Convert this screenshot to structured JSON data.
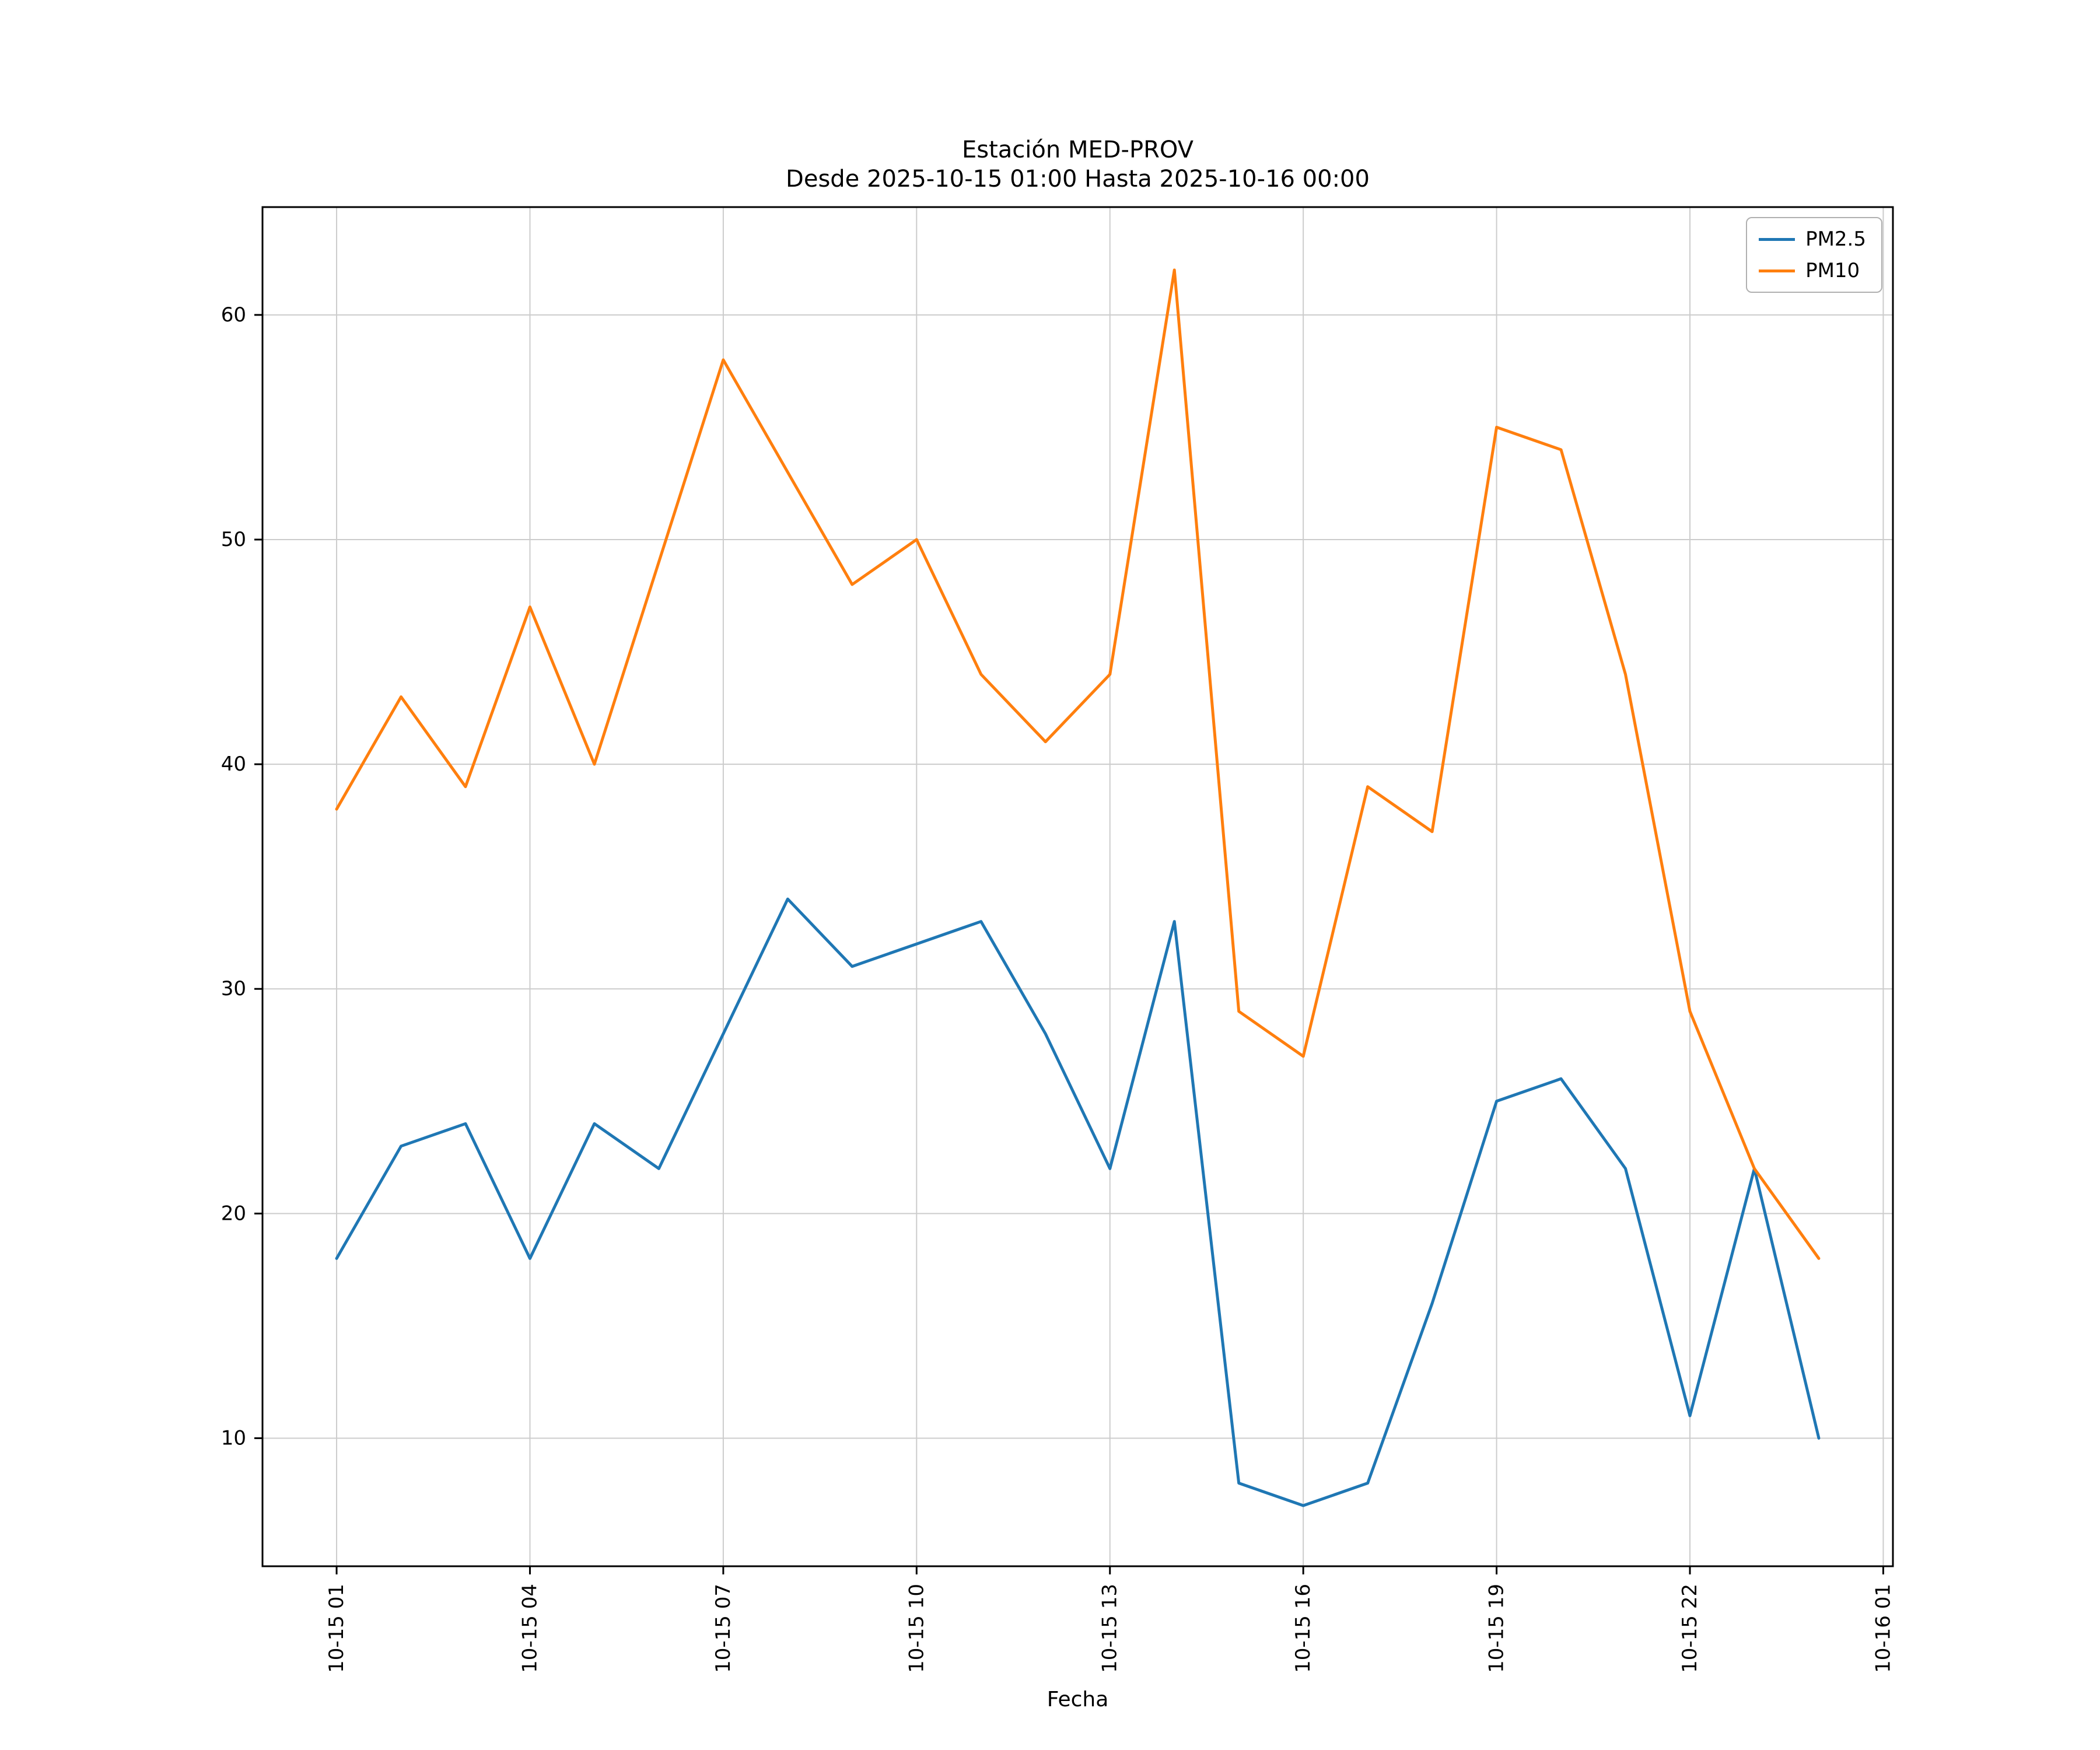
{
  "title": {
    "line1": "Estación MED-PROV",
    "line2": "Desde 2025-10-15 01:00 Hasta 2025-10-16 00:00"
  },
  "xlabel": "Fecha",
  "chart_data": {
    "type": "line",
    "title": "Estación MED-PROV",
    "subtitle": "Desde 2025-10-15 01:00 Hasta 2025-10-16 00:00",
    "xlabel": "Fecha",
    "ylabel": "",
    "grid": true,
    "legend_position": "upper right",
    "xlim": [
      -0.15,
      25.15
    ],
    "ylim": [
      4.3,
      64.8
    ],
    "x": [
      1,
      2,
      3,
      4,
      5,
      6,
      7,
      8,
      9,
      10,
      11,
      12,
      13,
      14,
      15,
      16,
      17,
      18,
      19,
      20,
      21,
      22,
      23,
      24
    ],
    "x_ticks": {
      "positions": [
        1,
        4,
        7,
        10,
        13,
        16,
        19,
        22,
        25
      ],
      "labels": [
        "10-15 01",
        "10-15 04",
        "10-15 07",
        "10-15 10",
        "10-15 13",
        "10-15 16",
        "10-15 19",
        "10-15 22",
        "10-16 01"
      ]
    },
    "y_ticks": [
      10,
      20,
      30,
      40,
      50,
      60
    ],
    "grid_color": "#cccccc",
    "series": [
      {
        "name": "PM2.5",
        "color": "#1f77b4",
        "values": [
          18,
          23,
          24,
          18,
          24,
          22,
          28,
          34,
          31,
          32,
          33,
          28,
          22,
          33,
          8,
          7,
          8,
          16,
          25,
          26,
          22,
          11,
          22,
          10
        ]
      },
      {
        "name": "PM10",
        "color": "#ff7f0e",
        "values": [
          38,
          43,
          39,
          47,
          40,
          49,
          58,
          53,
          48,
          50,
          44,
          41,
          44,
          62,
          29,
          27,
          39,
          37,
          55,
          54,
          44,
          29,
          22,
          18
        ]
      }
    ]
  }
}
